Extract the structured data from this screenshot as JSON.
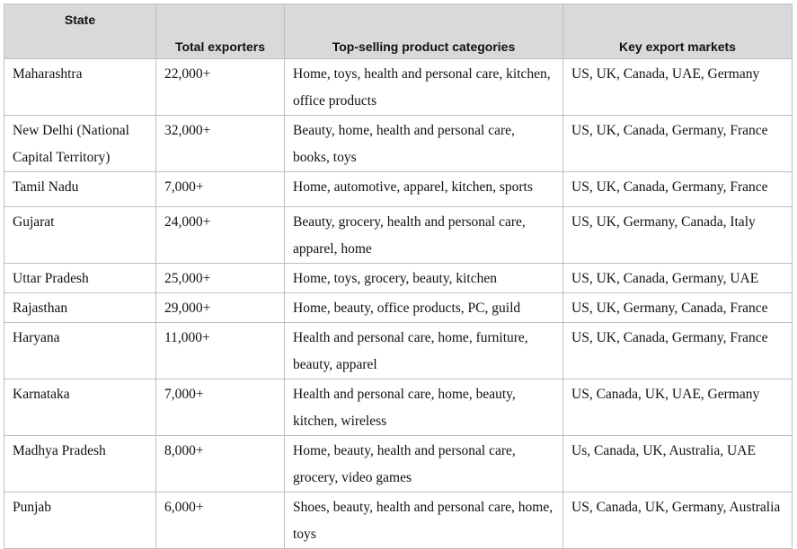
{
  "table": {
    "header": [
      "State",
      "Total exporters",
      "Top-selling product categories",
      "Key export markets"
    ],
    "rows": [
      [
        "Maharashtra",
        "22,000+",
        "Home, toys, health and personal care, kitchen, office products",
        "US, UK, Canada, UAE, Germany"
      ],
      [
        "New Delhi (National Capital Territory)",
        "32,000+",
        "Beauty, home, health and personal care, books, toys",
        "US, UK, Canada, Germany, France"
      ],
      [
        "Tamil Nadu",
        "7,000+",
        "Home, automotive, apparel, kitchen, sports",
        "US, UK, Canada, Germany, France"
      ],
      [
        "Gujarat",
        "24,000+",
        "Beauty, grocery, health and personal care, apparel, home",
        "US, UK, Germany, Canada, Italy"
      ],
      [
        "Uttar Pradesh",
        "25,000+",
        "Home, toys, grocery, beauty, kitchen",
        "US, UK, Canada, Germany, UAE"
      ],
      [
        "Rajasthan",
        "29,000+",
        "Home, beauty, office products, PC, guild",
        "US, UK, Germany, Canada, France"
      ],
      [
        "Haryana",
        "11,000+",
        "Health and personal care, home, furniture, beauty, apparel",
        "US, UK, Canada, Germany, France"
      ],
      [
        "Karnataka",
        "7,000+",
        "Health and personal care, home, beauty, kitchen, wireless",
        "US, Canada, UK, UAE, Germany"
      ],
      [
        "Madhya Pradesh",
        "8,000+",
        "Home, beauty, health and personal care, grocery, video games",
        "Us, Canada, UK, Australia, UAE"
      ],
      [
        "Punjab",
        "6,000+",
        "Shoes, beauty, health and personal care, home, toys",
        "US, Canada, UK, Germany, Australia"
      ]
    ]
  }
}
